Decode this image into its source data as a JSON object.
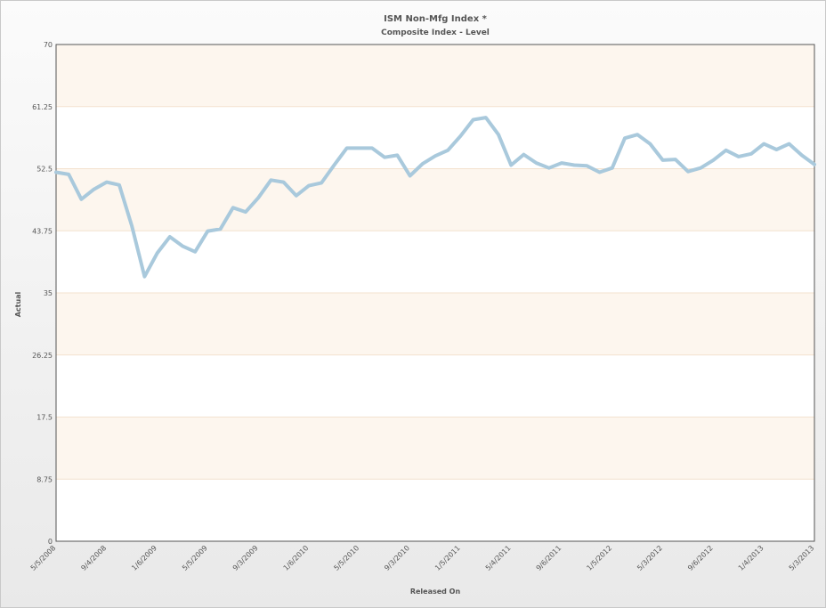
{
  "chart_data": {
    "type": "line",
    "title": "ISM Non-Mfg Index *",
    "subtitle": "Composite Index - Level",
    "xlabel": "Released On",
    "ylabel": "Actual",
    "ylim": [
      0,
      70
    ],
    "y_ticks": [
      "0",
      "8.75",
      "17.5",
      "26.25",
      "35",
      "43.75",
      "52.5",
      "61.25",
      "70"
    ],
    "x_ticks": [
      "5/5/2008",
      "9/4/2008",
      "1/6/2009",
      "5/5/2009",
      "9/3/2009",
      "1/6/2010",
      "5/5/2010",
      "9/3/2010",
      "1/5/2011",
      "5/4/2011",
      "9/6/2011",
      "1/5/2012",
      "5/3/2012",
      "9/6/2012",
      "1/4/2013",
      "5/3/2013"
    ],
    "grid": true,
    "band_colors": [
      "#fdf6ee",
      "#ffffff"
    ],
    "line_color": "#a9c9dc",
    "series": [
      {
        "values": [
          52.0,
          51.7,
          48.2,
          49.6,
          50.6,
          50.2,
          44.4,
          37.3,
          40.6,
          42.9,
          41.6,
          40.8,
          43.7,
          44.0,
          47.0,
          46.4,
          48.4,
          50.9,
          50.6,
          48.7,
          50.1,
          50.5,
          53.0,
          55.4,
          55.4,
          55.4,
          54.1,
          54.4,
          51.5,
          53.2,
          54.3,
          55.1,
          57.1,
          59.4,
          59.7,
          57.3,
          53.0,
          54.5,
          53.3,
          52.6,
          53.3,
          53.0,
          52.9,
          52.0,
          52.6,
          56.8,
          57.3,
          56.0,
          53.7,
          53.8,
          52.1,
          52.6,
          53.7,
          55.1,
          54.2,
          54.6,
          56.0,
          55.2,
          56.0,
          54.4,
          53.1
        ]
      }
    ]
  }
}
